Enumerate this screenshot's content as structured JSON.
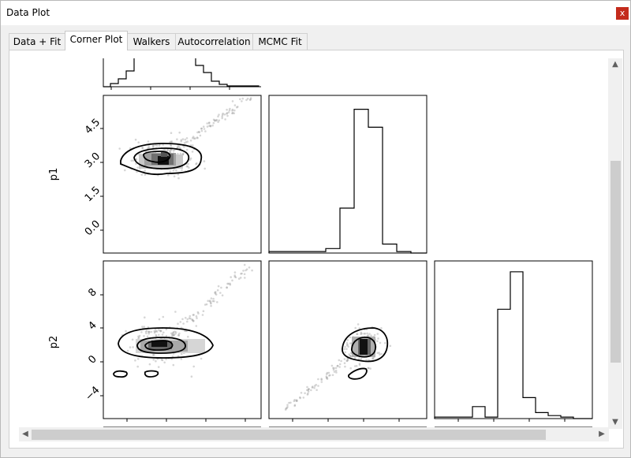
{
  "window": {
    "title": "Data Plot",
    "close_label": "x"
  },
  "tabs": [
    {
      "label": "Data + Fit",
      "active": false
    },
    {
      "label": "Corner Plot",
      "active": true
    },
    {
      "label": "Walkers",
      "active": false
    },
    {
      "label": "Autocorrelation",
      "active": false
    },
    {
      "label": "MCMC Fit",
      "active": false
    }
  ],
  "scrollbars": {
    "up": "▲",
    "down": "▼",
    "left": "◀",
    "right": "▶"
  },
  "chart_data": {
    "type": "corner",
    "ylabels": [
      "p1",
      "p2"
    ],
    "p1_ticks": [
      "0.0",
      "1.5",
      "3.0",
      "4.5"
    ],
    "p2_ticks": [
      "−4",
      "0",
      "4",
      "8"
    ],
    "marginal_p1": [
      0.01,
      0.01,
      0.01,
      0.01,
      0.03,
      0.3,
      0.96,
      0.84,
      0.06,
      0.01,
      0.0
    ],
    "marginal_p2": [
      0.01,
      0.01,
      0.01,
      0.08,
      0.01,
      0.73,
      0.98,
      0.14,
      0.04,
      0.02,
      0.01,
      0.0
    ]
  }
}
